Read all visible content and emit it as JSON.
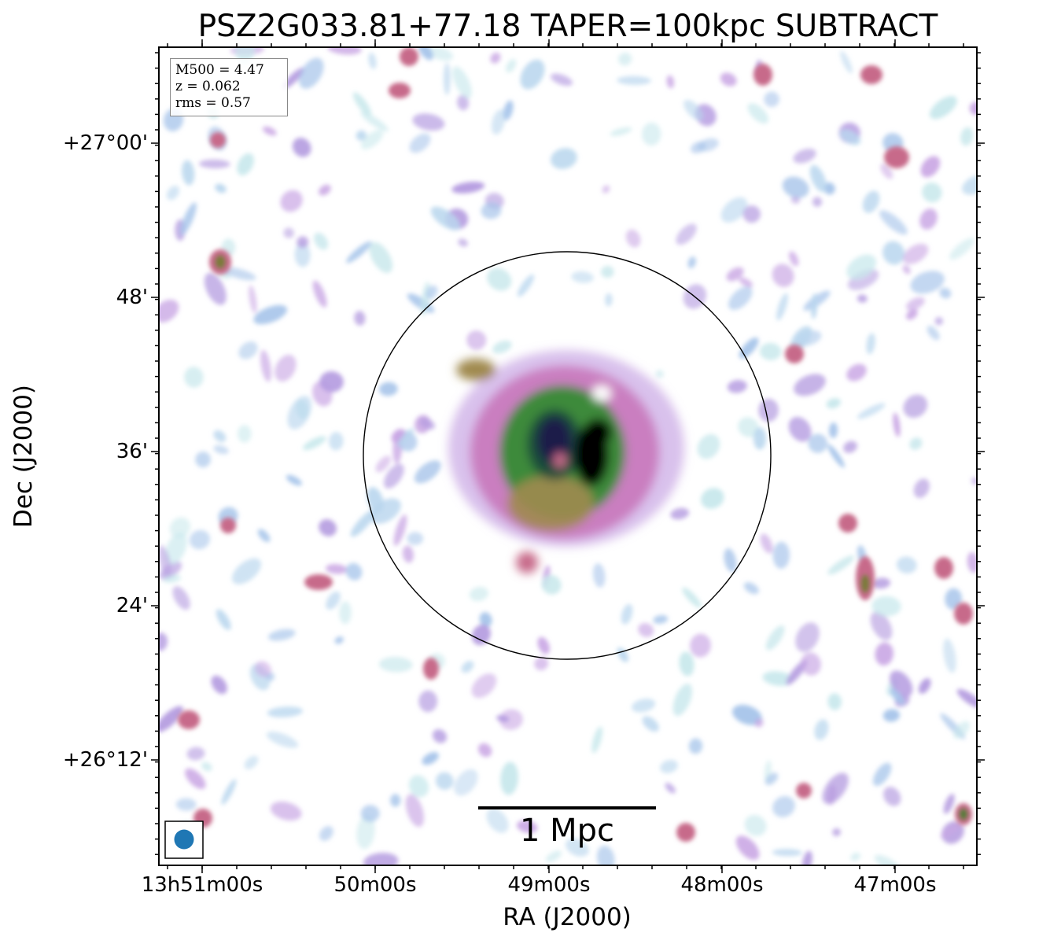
{
  "title": "PSZ2G033.81+77.18 TAPER=100kpc SUBTRACT",
  "axes": {
    "xlabel": "RA (J2000)",
    "ylabel": "Dec (J2000)",
    "x_ticks": [
      "13h51m00s",
      "50m00s",
      "49m00s",
      "48m00s",
      "47m00s"
    ],
    "y_ticks": [
      "+27°00'",
      "48'",
      "36'",
      "24'",
      "+26°12'"
    ]
  },
  "info_box": {
    "m500": "M500 = 4.47",
    "z": "z = 0.062",
    "rms": "rms = 0.57"
  },
  "scale_bar": {
    "label": "1 Mpc"
  },
  "colors": {
    "beam": "#1f77b4",
    "colormap": [
      "#ffffff",
      "#c8e8ec",
      "#a6c4ea",
      "#b49be0",
      "#c873b8",
      "#c76a8a",
      "#a08a50",
      "#3e8a3a",
      "#1e4d3a",
      "#1d1c4a",
      "#000000"
    ]
  },
  "image_content": "radio continuum map, diffuse extended emission at cluster centre inside a black circle, compact sources scattered across field"
}
